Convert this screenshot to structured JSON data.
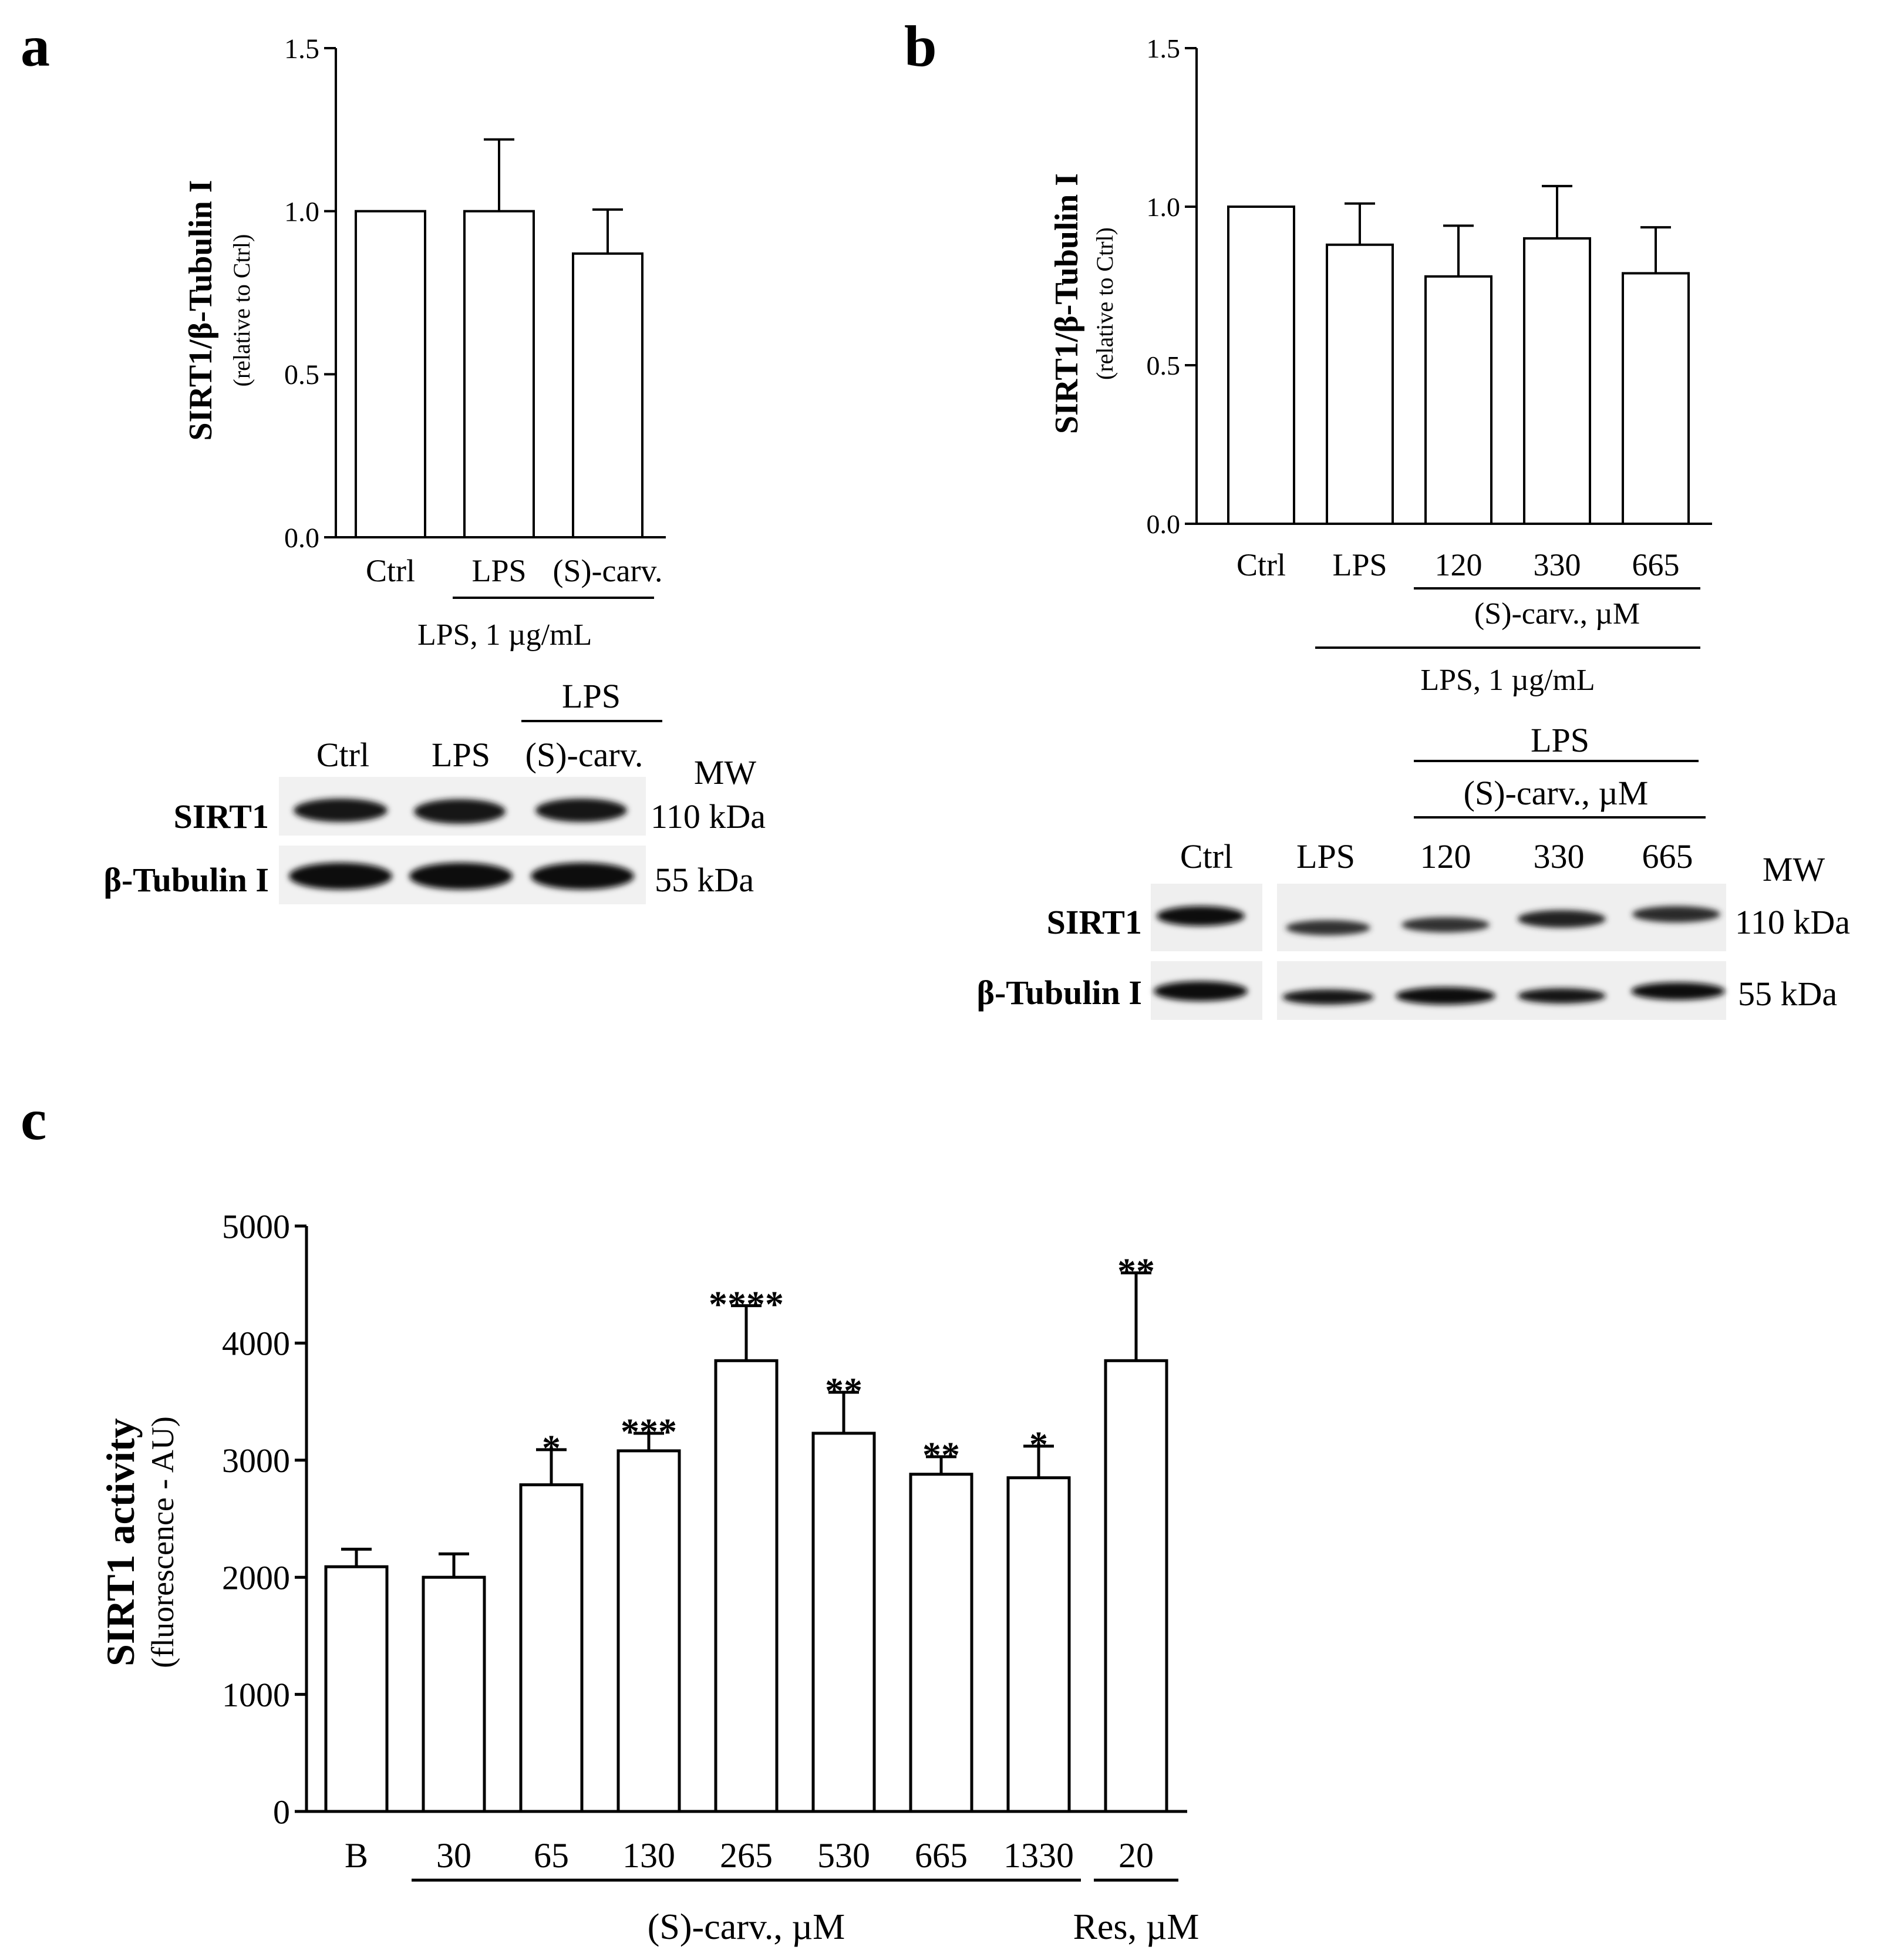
{
  "panel_letters": {
    "a": "a",
    "b": "b",
    "c": "c"
  },
  "chart_data": [
    {
      "id": "a",
      "type": "bar",
      "ylabel": "SIRT1/β-Tubulin I",
      "ylabel_sub": "(relative to Ctrl)",
      "ylim": [
        0,
        1.5
      ],
      "yticks": [
        "0.0",
        "0.5",
        "1.0",
        "1.5"
      ],
      "categories": [
        "Ctrl",
        "LPS",
        "(S)-carv."
      ],
      "values": [
        1.0,
        1.0,
        0.87
      ],
      "errors": [
        0,
        0.22,
        0.135
      ],
      "significance": [
        "",
        "",
        ""
      ],
      "groups": [
        {
          "label": "LPS, 1 µg/mL",
          "from": 1,
          "to": 2
        }
      ]
    },
    {
      "id": "b",
      "type": "bar",
      "ylabel": "SIRT1/β-Tubulin I",
      "ylabel_sub": "(relative to Ctrl)",
      "ylim": [
        0,
        1.5
      ],
      "yticks": [
        "0.0",
        "0.5",
        "1.0",
        "1.5"
      ],
      "categories": [
        "Ctrl",
        "LPS",
        "120",
        "330",
        "665"
      ],
      "values": [
        1.0,
        0.88,
        0.78,
        0.9,
        0.79
      ],
      "errors": [
        0,
        0.13,
        0.16,
        0.165,
        0.145
      ],
      "significance": [
        "",
        "",
        "",
        "",
        ""
      ],
      "groups": [
        {
          "label": "(S)-carv., µM",
          "from": 2,
          "to": 4
        },
        {
          "label": "LPS, 1 µg/mL",
          "from": 1,
          "to": 4
        }
      ]
    },
    {
      "id": "c",
      "type": "bar",
      "ylabel": "SIRT1 activity",
      "ylabel_sub": "(fluorescence - AU)",
      "ylim": [
        0,
        5000
      ],
      "yticks": [
        "0",
        "1000",
        "2000",
        "3000",
        "4000",
        "5000"
      ],
      "categories": [
        "B",
        "30",
        "65",
        "130",
        "265",
        "530",
        "665",
        "1330",
        "20"
      ],
      "values": [
        2090,
        2000,
        2790,
        3080,
        3850,
        3230,
        2880,
        2850,
        3850
      ],
      "errors": [
        150,
        200,
        300,
        150,
        470,
        350,
        150,
        270,
        750
      ],
      "significance": [
        "",
        "",
        "*",
        "***",
        "****",
        "**",
        "**",
        "*",
        "**"
      ],
      "groups": [
        {
          "label": "(S)-carv., µM",
          "from": 1,
          "to": 7
        },
        {
          "label": "Res, µM",
          "from": 8,
          "to": 8
        }
      ]
    }
  ],
  "blots": {
    "a": {
      "group_label": "LPS",
      "lanes": [
        "Ctrl",
        "LPS",
        "(S)-carv."
      ],
      "mw_header": "MW",
      "rows": [
        {
          "protein": "SIRT1",
          "mw": "110 kDa"
        },
        {
          "protein": "β-Tubulin I",
          "mw": "55 kDa"
        }
      ]
    },
    "b": {
      "group_label": "LPS",
      "sub_label": "(S)-carv., µM",
      "lanes": [
        "Ctrl",
        "LPS",
        "120",
        "330",
        "665"
      ],
      "mw_header": "MW",
      "rows": [
        {
          "protein": "SIRT1",
          "mw": "110 kDa"
        },
        {
          "protein": "β-Tubulin I",
          "mw": "55 kDa"
        }
      ]
    }
  }
}
